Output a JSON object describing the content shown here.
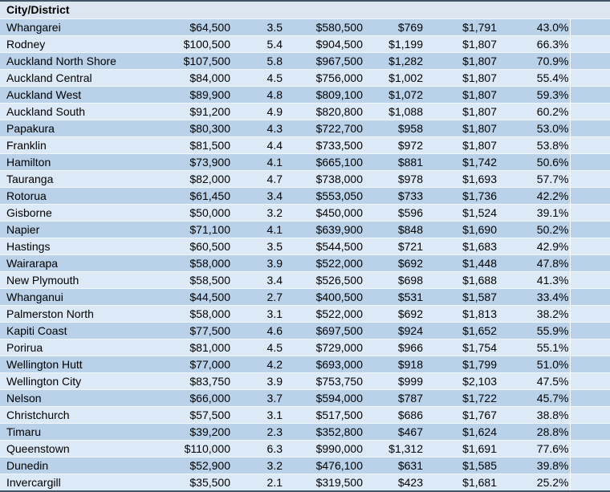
{
  "table": {
    "header_label": "City/District",
    "column_keys": [
      "city",
      "col2",
      "col3",
      "col4",
      "col5",
      "col6",
      "col7"
    ],
    "rows": [
      [
        "Whangarei",
        "$64,500",
        "3.5",
        "$580,500",
        "$769",
        "$1,791",
        "43.0%"
      ],
      [
        "Rodney",
        "$100,500",
        "5.4",
        "$904,500",
        "$1,199",
        "$1,807",
        "66.3%"
      ],
      [
        "Auckland North Shore",
        "$107,500",
        "5.8",
        "$967,500",
        "$1,282",
        "$1,807",
        "70.9%"
      ],
      [
        "Auckland Central",
        "$84,000",
        "4.5",
        "$756,000",
        "$1,002",
        "$1,807",
        "55.4%"
      ],
      [
        "Auckland West",
        "$89,900",
        "4.8",
        "$809,100",
        "$1,072",
        "$1,807",
        "59.3%"
      ],
      [
        "Auckland South",
        "$91,200",
        "4.9",
        "$820,800",
        "$1,088",
        "$1,807",
        "60.2%"
      ],
      [
        "Papakura",
        "$80,300",
        "4.3",
        "$722,700",
        "$958",
        "$1,807",
        "53.0%"
      ],
      [
        "Franklin",
        "$81,500",
        "4.4",
        "$733,500",
        "$972",
        "$1,807",
        "53.8%"
      ],
      [
        "Hamilton",
        "$73,900",
        "4.1",
        "$665,100",
        "$881",
        "$1,742",
        "50.6%"
      ],
      [
        "Tauranga",
        "$82,000",
        "4.7",
        "$738,000",
        "$978",
        "$1,693",
        "57.7%"
      ],
      [
        "Rotorua",
        "$61,450",
        "3.4",
        "$553,050",
        "$733",
        "$1,736",
        "42.2%"
      ],
      [
        "Gisborne",
        "$50,000",
        "3.2",
        "$450,000",
        "$596",
        "$1,524",
        "39.1%"
      ],
      [
        "Napier",
        "$71,100",
        "4.1",
        "$639,900",
        "$848",
        "$1,690",
        "50.2%"
      ],
      [
        "Hastings",
        "$60,500",
        "3.5",
        "$544,500",
        "$721",
        "$1,683",
        "42.9%"
      ],
      [
        "Wairarapa",
        "$58,000",
        "3.9",
        "$522,000",
        "$692",
        "$1,448",
        "47.8%"
      ],
      [
        "New Plymouth",
        "$58,500",
        "3.4",
        "$526,500",
        "$698",
        "$1,688",
        "41.3%"
      ],
      [
        "Whanganui",
        "$44,500",
        "2.7",
        "$400,500",
        "$531",
        "$1,587",
        "33.4%"
      ],
      [
        "Palmerston North",
        "$58,000",
        "3.1",
        "$522,000",
        "$692",
        "$1,813",
        "38.2%"
      ],
      [
        "Kapiti Coast",
        "$77,500",
        "4.6",
        "$697,500",
        "$924",
        "$1,652",
        "55.9%"
      ],
      [
        "Porirua",
        "$81,000",
        "4.5",
        "$729,000",
        "$966",
        "$1,754",
        "55.1%"
      ],
      [
        "Wellington Hutt",
        "$77,000",
        "4.2",
        "$693,000",
        "$918",
        "$1,799",
        "51.0%"
      ],
      [
        "Wellington City",
        "$83,750",
        "3.9",
        "$753,750",
        "$999",
        "$2,103",
        "47.5%"
      ],
      [
        "Nelson",
        "$66,000",
        "3.7",
        "$594,000",
        "$787",
        "$1,722",
        "45.7%"
      ],
      [
        "Christchurch",
        "$57,500",
        "3.1",
        "$517,500",
        "$686",
        "$1,767",
        "38.8%"
      ],
      [
        "Timaru",
        "$39,200",
        "2.3",
        "$352,800",
        "$467",
        "$1,624",
        "28.8%"
      ],
      [
        "Queenstown",
        "$110,000",
        "6.3",
        "$990,000",
        "$1,312",
        "$1,691",
        "77.6%"
      ],
      [
        "Dunedin",
        "$52,900",
        "3.2",
        "$476,100",
        "$631",
        "$1,585",
        "39.8%"
      ],
      [
        "Invercargill",
        "$35,500",
        "2.1",
        "$319,500",
        "$423",
        "$1,681",
        "25.2%"
      ]
    ]
  },
  "colors": {
    "header_bg": "#dce6f1",
    "row_odd": "#b9d2ea",
    "row_even": "#dce9f6",
    "separator": "#f2f7fc",
    "border": "#44546a",
    "text": "#000000"
  }
}
